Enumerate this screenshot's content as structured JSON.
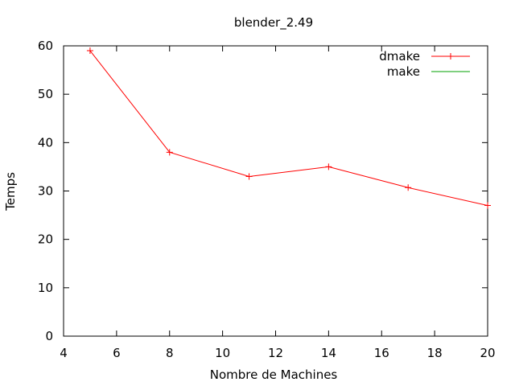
{
  "chart_data": {
    "type": "line",
    "title": "blender_2.49",
    "xlabel": "Nombre de Machines",
    "ylabel": "Temps",
    "xlim": [
      4,
      20
    ],
    "ylim": [
      0,
      60
    ],
    "xticks": [
      4,
      6,
      8,
      10,
      12,
      14,
      16,
      18,
      20
    ],
    "yticks": [
      0,
      10,
      20,
      30,
      40,
      50,
      60
    ],
    "grid": false,
    "legend_position": "top-right",
    "series": [
      {
        "name": "dmake",
        "color": "#ff0000",
        "marker": "plus",
        "x": [
          5,
          8,
          11,
          14,
          17,
          20
        ],
        "y": [
          59,
          38,
          33,
          35,
          30.7,
          27
        ]
      },
      {
        "name": "make",
        "color": "#00a000",
        "marker": "none",
        "x": [],
        "y": []
      }
    ]
  }
}
